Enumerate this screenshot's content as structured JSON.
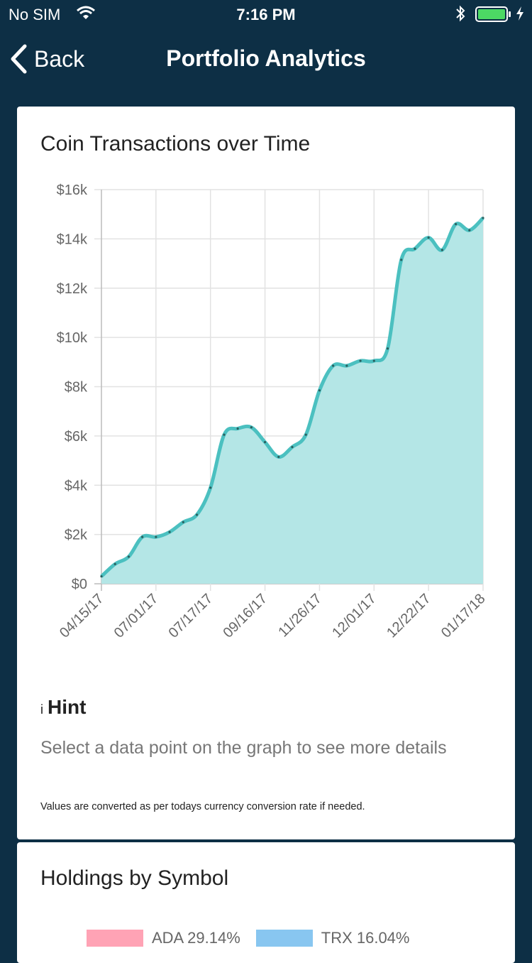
{
  "status_bar": {
    "carrier": "No SIM",
    "time": "7:16 PM"
  },
  "nav": {
    "back_label": "Back",
    "title": "Portfolio Analytics"
  },
  "transactions_card": {
    "title": "Coin Transactions over Time",
    "hint_icon": "i",
    "hint_title": "Hint",
    "hint_body": "Select a data point on the graph to see more details",
    "hint_note": "Values are converted as per todays currency conversion rate if needed."
  },
  "holdings_card": {
    "title": "Holdings by Symbol",
    "legend": [
      {
        "label": "ADA 29.14%",
        "color": "#ffa3b5"
      },
      {
        "label": "TRX 16.04%",
        "color": "#88c6f0"
      }
    ]
  },
  "chart_data": {
    "type": "area",
    "x_tick_labels": [
      "04/15/17",
      "07/01/17",
      "07/17/17",
      "09/16/17",
      "11/26/17",
      "12/01/17",
      "12/22/17",
      "01/17/18"
    ],
    "y_tick_labels": [
      "$0",
      "$2k",
      "$4k",
      "$6k",
      "$8k",
      "$10k",
      "$12k",
      "$14k",
      "$16k"
    ],
    "ylim": [
      0,
      16000
    ],
    "grid": true,
    "line_color": "#4bc0c0",
    "fill_color": "#b4e6e6",
    "x": [
      0,
      0.25,
      0.5,
      0.75,
      1,
      1.25,
      1.5,
      1.75,
      2,
      2.25,
      2.5,
      2.75,
      3,
      3.25,
      3.5,
      3.75,
      4,
      4.25,
      4.5,
      4.75,
      5,
      5.25,
      5.5,
      5.75,
      6,
      6.25,
      6.5,
      6.75,
      7
    ],
    "values": [
      300,
      800,
      1100,
      1900,
      1900,
      2100,
      2500,
      2800,
      3900,
      6050,
      6300,
      6350,
      5750,
      5150,
      5550,
      6050,
      7850,
      8850,
      8850,
      9050,
      9050,
      9550,
      13150,
      13600,
      14050,
      13550,
      14600,
      14350,
      14850
    ]
  }
}
